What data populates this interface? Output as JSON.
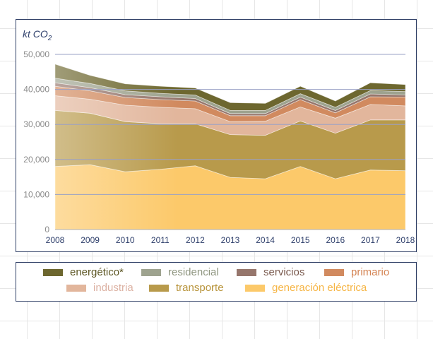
{
  "chart_data": {
    "type": "area",
    "ylabel_main": "kt CO",
    "ylabel_sub": "2",
    "ylim": [
      0,
      50000
    ],
    "yticks": [
      0,
      10000,
      20000,
      30000,
      40000,
      50000
    ],
    "ytick_labels": [
      "0",
      "10,000",
      "20,000",
      "30,000",
      "40,000",
      "50,000"
    ],
    "categories": [
      "2008",
      "2009",
      "2010",
      "2011",
      "2012",
      "2013",
      "2014",
      "2015",
      "2016",
      "2017",
      "2018"
    ],
    "stacked": true,
    "grid": true,
    "legend_position": "bottom",
    "series": [
      {
        "name": "generación eléctrica",
        "color": "#fcc96a",
        "label_color": "#f6b545",
        "values": [
          18000,
          18500,
          16500,
          17200,
          18200,
          14900,
          14500,
          18000,
          14500,
          17000,
          16800
        ]
      },
      {
        "name": "transporte",
        "color": "#b89a4b",
        "label_color": "#b8943b",
        "values": [
          16000,
          14700,
          14300,
          13000,
          12000,
          12200,
          12400,
          13000,
          13000,
          14300,
          14500
        ]
      },
      {
        "name": "industria",
        "color": "#e2b69c",
        "label_color": "#dcb1a2",
        "values": [
          4200,
          4000,
          4700,
          4700,
          4300,
          3700,
          4000,
          4000,
          4300,
          4400,
          4000
        ]
      },
      {
        "name": "primario",
        "color": "#d18a5f",
        "label_color": "#d48352",
        "values": [
          2700,
          2400,
          2200,
          2200,
          2200,
          1700,
          1600,
          2100,
          1500,
          2200,
          2500
        ]
      },
      {
        "name": "servicios",
        "color": "#96766c",
        "label_color": "#7a5a4e",
        "values": [
          1000,
          900,
          800,
          800,
          700,
          600,
          600,
          700,
          700,
          800,
          600
        ]
      },
      {
        "name": "residencial",
        "color": "#9ea38f",
        "label_color": "#8f9680",
        "values": [
          1300,
          1200,
          1100,
          1000,
          1000,
          900,
          900,
          1000,
          900,
          1000,
          1000
        ]
      },
      {
        "name": "energético*",
        "color": "#6d672f",
        "label_color": "#5c5623",
        "values": [
          4000,
          2300,
          2000,
          2000,
          2000,
          2200,
          2000,
          2100,
          1800,
          2200,
          2000
        ]
      }
    ]
  },
  "legend_order": [
    6,
    5,
    4,
    3,
    2,
    1,
    0
  ],
  "colors": {
    "frame_border": "#2f3f66",
    "axis_text": "#2e3f6b",
    "tick_text": "#8a8a8a",
    "gridline": "#9aa0c6",
    "axis_line": "#b0b0b0"
  }
}
